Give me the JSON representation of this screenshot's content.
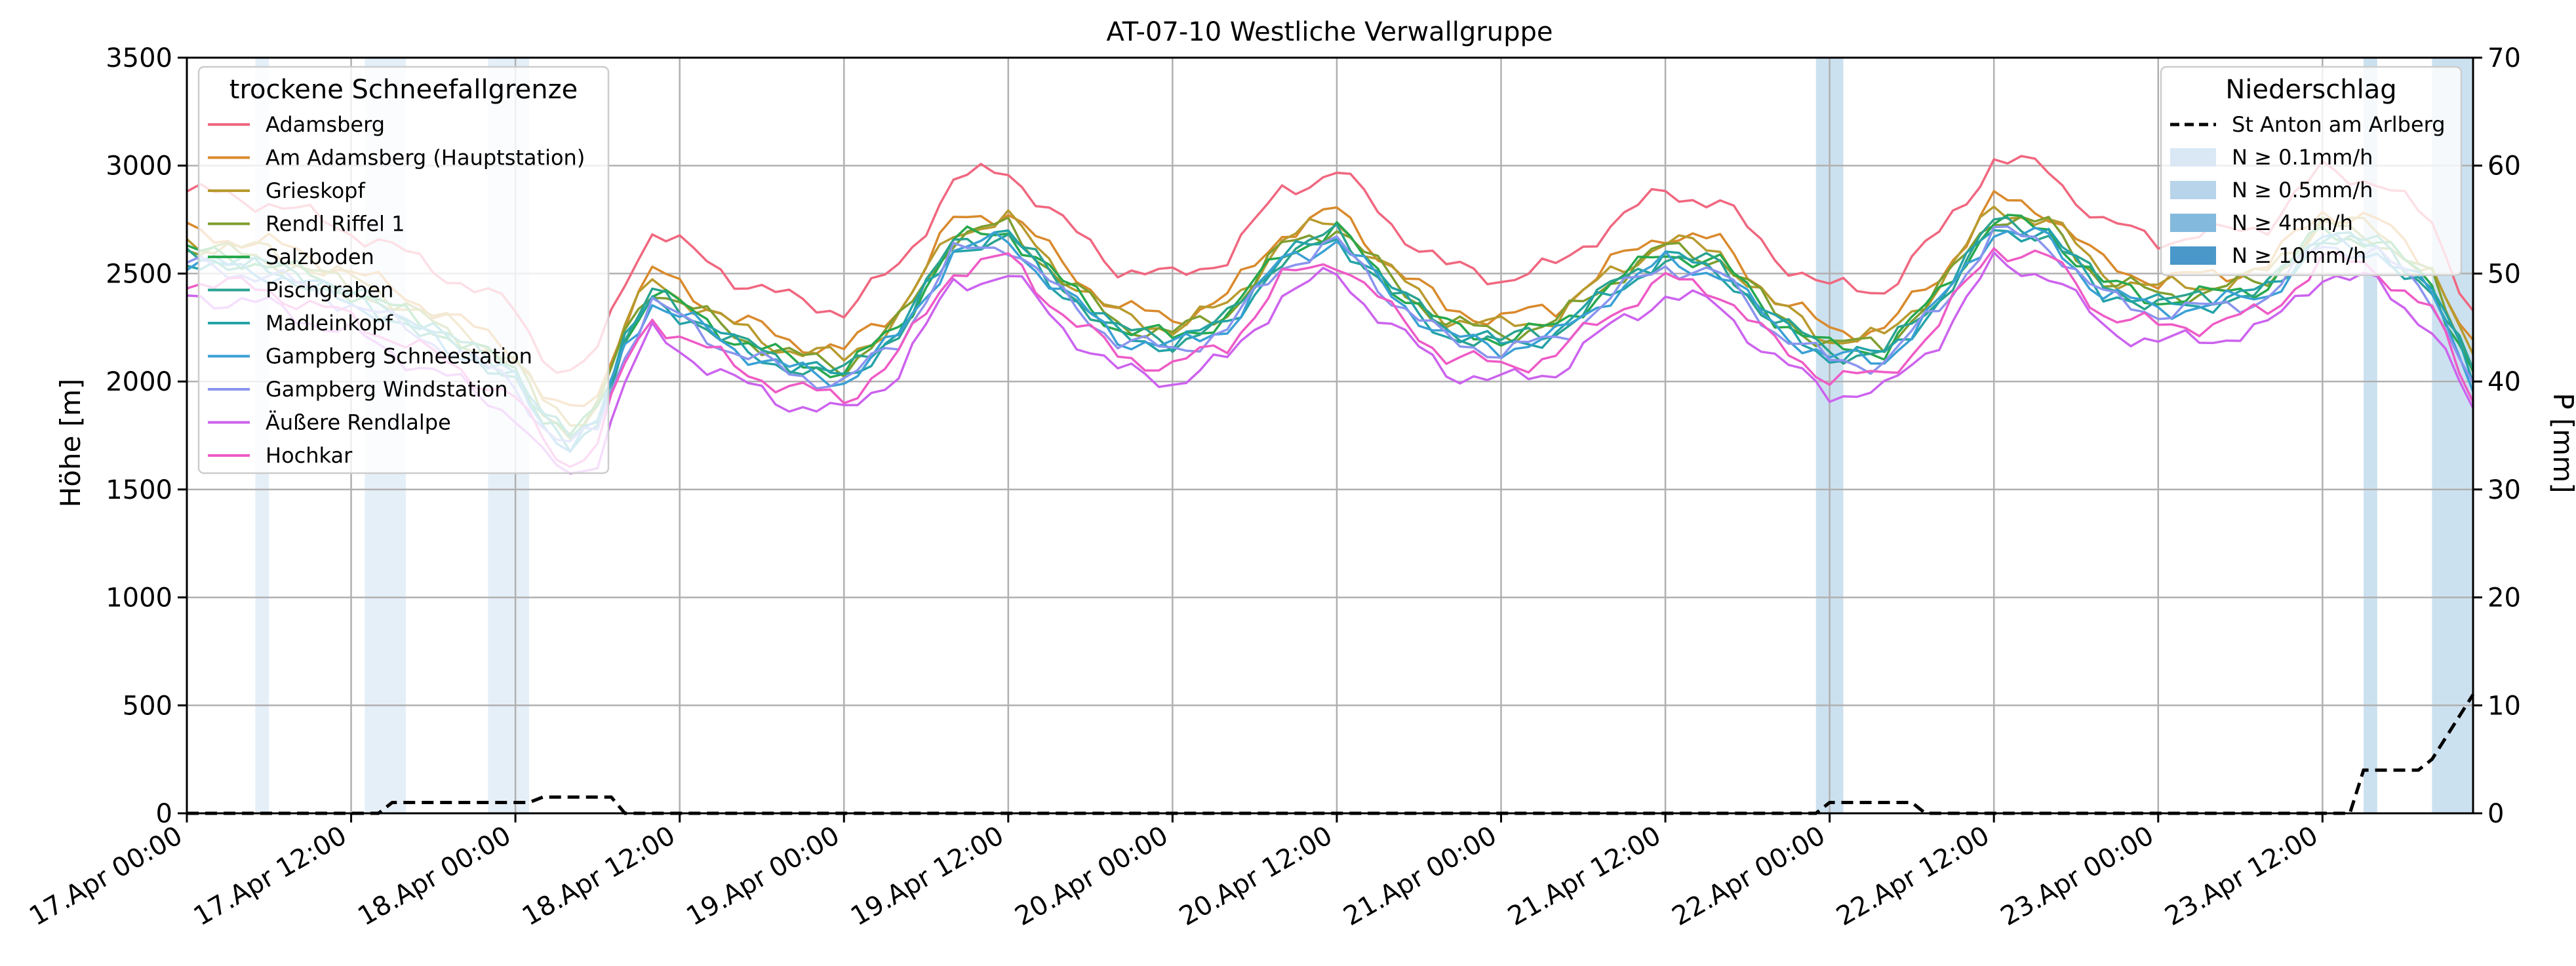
{
  "chart_data": {
    "type": "line",
    "title": "AT-07-10 Westliche Verwallgruppe",
    "ylabel": "Höhe [m]",
    "y2label": "P [mm]",
    "ylim": [
      0,
      3500
    ],
    "y2lim": [
      0,
      70
    ],
    "y_ticks": [
      "0",
      "500",
      "1000",
      "1500",
      "2000",
      "2500",
      "3000",
      "3500"
    ],
    "y2_ticks": [
      "0",
      "10",
      "20",
      "30",
      "40",
      "50",
      "60",
      "70"
    ],
    "x_start": "17.Apr 00:00",
    "x_step_hours": 12,
    "x_ticks": [
      "17.Apr 00:00",
      "17.Apr 12:00",
      "18.Apr 00:00",
      "18.Apr 12:00",
      "19.Apr 00:00",
      "19.Apr 12:00",
      "20.Apr 00:00",
      "20.Apr 12:00",
      "21.Apr 00:00",
      "21.Apr 12:00",
      "22.Apr 00:00",
      "22.Apr 12:00",
      "23.Apr 00:00",
      "23.Apr 12:00"
    ],
    "x_range_hours": [
      0,
      167
    ],
    "grid": true,
    "legend_left": {
      "title": "trockene Schneefallgrenze",
      "placement": "upper-left"
    },
    "legend_right": {
      "title": "Niederschlag",
      "placement": "upper-right",
      "entries": [
        {
          "label": "St Anton am Arlberg",
          "style": "dashed-black"
        },
        {
          "label": "N ≥ 0.1mm/h",
          "color": "#dae8f5"
        },
        {
          "label": "N ≥ 0.5mm/h",
          "color": "#b7d4ea"
        },
        {
          "label": "N ≥ 4mm/h",
          "color": "#83b9dc"
        },
        {
          "label": "N ≥ 10mm/h",
          "color": "#4a98c9"
        }
      ]
    },
    "series": [
      {
        "name": "Adamsberg",
        "color": "#f0677f",
        "offset": 280
      },
      {
        "name": "Am Adamsberg (Hauptstation)",
        "color": "#d98a2c",
        "offset": 90
      },
      {
        "name": "Grieskopf",
        "color": "#b89a2e",
        "offset": 50
      },
      {
        "name": "Rendl Riffel 1",
        "color": "#7f9e2f",
        "offset": 20
      },
      {
        "name": "Salzboden",
        "color": "#27a84e",
        "offset": 0
      },
      {
        "name": "Pischgraben",
        "color": "#2aa390",
        "offset": -15
      },
      {
        "name": "Madleinkopf",
        "color": "#24a3a8",
        "offset": -30
      },
      {
        "name": "Gampberg Schneestation",
        "color": "#3aa0d4",
        "offset": -45
      },
      {
        "name": "Gampberg Windstation",
        "color": "#8a94ee",
        "offset": -60
      },
      {
        "name": "Äußere Rendlalpe",
        "color": "#cc63ee",
        "offset": -200
      },
      {
        "name": "Hochkar",
        "color": "#ee5bc6",
        "offset": -130
      }
    ],
    "base_curve": {
      "hours": [
        0,
        6,
        12,
        18,
        24,
        26,
        28,
        30,
        32,
        34,
        36,
        40,
        44,
        48,
        52,
        56,
        60,
        64,
        68,
        72,
        76,
        80,
        84,
        88,
        92,
        96,
        100,
        104,
        108,
        112,
        116,
        120,
        124,
        128,
        132,
        136,
        140,
        144,
        148,
        152,
        156,
        160,
        164,
        167
      ],
      "heights": [
        2600,
        2550,
        2420,
        2250,
        2050,
        1850,
        1750,
        1850,
        2200,
        2420,
        2350,
        2200,
        2100,
        2050,
        2250,
        2650,
        2700,
        2450,
        2250,
        2200,
        2300,
        2600,
        2700,
        2450,
        2250,
        2200,
        2250,
        2450,
        2600,
        2550,
        2300,
        2150,
        2150,
        2400,
        2750,
        2700,
        2450,
        2380,
        2400,
        2450,
        2700,
        2650,
        2450,
        2050
      ]
    },
    "precipitation": {
      "station": "St Anton am Arlberg",
      "cumulative_mm": [
        {
          "hours": 0,
          "value": 0
        },
        {
          "hours": 14,
          "value": 0
        },
        {
          "hours": 15,
          "value": 1
        },
        {
          "hours": 25,
          "value": 1
        },
        {
          "hours": 26,
          "value": 1.5
        },
        {
          "hours": 31,
          "value": 1.5
        },
        {
          "hours": 32,
          "value": 0
        },
        {
          "hours": 119,
          "value": 0
        },
        {
          "hours": 120,
          "value": 1
        },
        {
          "hours": 126,
          "value": 1
        },
        {
          "hours": 127,
          "value": 0
        },
        {
          "hours": 158,
          "value": 0
        },
        {
          "hours": 159,
          "value": 4
        },
        {
          "hours": 163,
          "value": 4
        },
        {
          "hours": 164,
          "value": 5
        },
        {
          "hours": 167,
          "value": 11
        }
      ],
      "bands": [
        {
          "from_hours": 5,
          "to_hours": 6,
          "level": "N ≥ 0.1mm/h"
        },
        {
          "from_hours": 13,
          "to_hours": 16,
          "level": "N ≥ 0.1mm/h"
        },
        {
          "from_hours": 22,
          "to_hours": 25,
          "level": "N ≥ 0.1mm/h"
        },
        {
          "from_hours": 119,
          "to_hours": 121,
          "level": "N ≥ 0.5mm/h"
        },
        {
          "from_hours": 159,
          "to_hours": 160,
          "level": "N ≥ 0.5mm/h"
        },
        {
          "from_hours": 164,
          "to_hours": 167,
          "level": "N ≥ 0.5mm/h"
        }
      ]
    }
  }
}
